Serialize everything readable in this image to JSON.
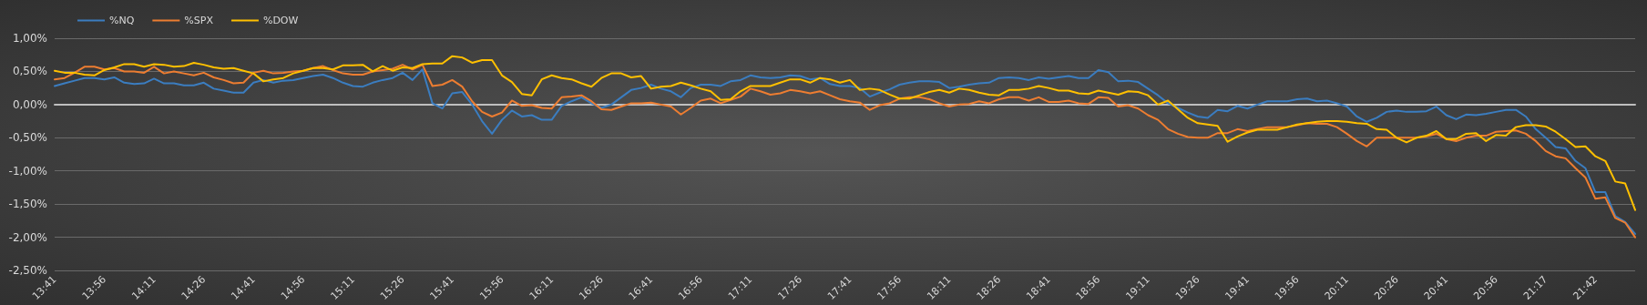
{
  "chart_data": {
    "type": "line",
    "categories": [
      "13:41",
      null,
      null,
      null,
      null,
      "13:56",
      null,
      null,
      null,
      null,
      "14:11",
      null,
      null,
      null,
      null,
      "14:26",
      null,
      null,
      null,
      null,
      "14:41",
      null,
      null,
      null,
      null,
      "14:56",
      null,
      null,
      null,
      null,
      "15:11",
      null,
      null,
      null,
      null,
      "15:26",
      null,
      null,
      null,
      null,
      "15:41",
      null,
      null,
      null,
      null,
      "15:56",
      null,
      null,
      null,
      null,
      "16:11",
      null,
      null,
      null,
      null,
      "16:26",
      null,
      null,
      null,
      null,
      "16:41",
      null,
      null,
      null,
      null,
      "16:56",
      null,
      null,
      null,
      null,
      "17:11",
      null,
      null,
      null,
      null,
      "17:26",
      null,
      null,
      null,
      null,
      "17:41",
      null,
      null,
      null,
      null,
      "17:56",
      null,
      null,
      null,
      null,
      "18:11",
      null,
      null,
      null,
      null,
      "18:26",
      null,
      null,
      null,
      null,
      "18:41",
      null,
      null,
      null,
      null,
      "18:56",
      null,
      null,
      null,
      null,
      "19:11",
      null,
      null,
      null,
      null,
      "19:26",
      null,
      null,
      null,
      null,
      "19:41",
      null,
      null,
      null,
      null,
      "19:56",
      null,
      null,
      null,
      null,
      "20:11",
      null,
      null,
      null,
      null,
      "20:26",
      null,
      null,
      null,
      null,
      "20:41",
      null,
      null,
      null,
      null,
      "20:56",
      null,
      null,
      null,
      null,
      "21:17",
      null,
      null,
      null,
      null,
      "21:42",
      null,
      null,
      null,
      null
    ],
    "series": [
      {
        "name": "%NQ",
        "color": "#3b7dc0",
        "values": [
          0.28,
          0.32,
          0.36,
          0.4,
          0.4,
          0.38,
          0.41,
          0.33,
          0.31,
          0.32,
          0.39,
          0.32,
          0.32,
          0.29,
          0.29,
          0.33,
          0.24,
          0.21,
          0.18,
          0.18,
          0.33,
          0.37,
          0.33,
          0.36,
          0.37,
          0.4,
          0.43,
          0.45,
          0.4,
          0.33,
          0.28,
          0.27,
          0.33,
          0.37,
          0.4,
          0.48,
          0.37,
          0.53,
          0.02,
          -0.06,
          0.17,
          0.19,
          0.0,
          -0.25,
          -0.44,
          -0.23,
          -0.09,
          -0.18,
          -0.16,
          -0.23,
          -0.23,
          -0.02,
          0.05,
          0.11,
          0.02,
          -0.05,
          0.0,
          0.11,
          0.22,
          0.25,
          0.3,
          0.24,
          0.2,
          0.11,
          0.25,
          0.3,
          0.3,
          0.28,
          0.35,
          0.37,
          0.44,
          0.41,
          0.4,
          0.41,
          0.44,
          0.43,
          0.38,
          0.4,
          0.31,
          0.28,
          0.28,
          0.25,
          0.12,
          0.18,
          0.23,
          0.3,
          0.33,
          0.35,
          0.35,
          0.34,
          0.25,
          0.27,
          0.3,
          0.32,
          0.33,
          0.4,
          0.41,
          0.4,
          0.37,
          0.41,
          0.39,
          0.41,
          0.43,
          0.4,
          0.4,
          0.52,
          0.49,
          0.35,
          0.36,
          0.34,
          0.24,
          0.14,
          0.02,
          -0.05,
          -0.12,
          -0.18,
          -0.2,
          -0.08,
          -0.1,
          -0.02,
          -0.06,
          0.0,
          0.05,
          0.05,
          0.05,
          0.08,
          0.09,
          0.05,
          0.06,
          0.02,
          -0.03,
          -0.18,
          -0.26,
          -0.2,
          -0.11,
          -0.09,
          -0.11,
          -0.11,
          -0.1,
          -0.03,
          -0.16,
          -0.22,
          -0.15,
          -0.16,
          -0.14,
          -0.11,
          -0.08,
          -0.08,
          -0.18,
          -0.37,
          -0.5,
          -0.64,
          -0.66,
          -0.85,
          -0.96,
          -1.32,
          -1.32,
          -1.68,
          -1.77,
          -1.95
        ]
      },
      {
        "name": "%SPX",
        "color": "#ed7d31",
        "values": [
          0.38,
          0.4,
          0.48,
          0.57,
          0.57,
          0.53,
          0.55,
          0.5,
          0.5,
          0.48,
          0.57,
          0.47,
          0.5,
          0.47,
          0.44,
          0.48,
          0.41,
          0.37,
          0.32,
          0.33,
          0.48,
          0.51,
          0.47,
          0.48,
          0.5,
          0.51,
          0.55,
          0.58,
          0.52,
          0.47,
          0.45,
          0.45,
          0.5,
          0.52,
          0.54,
          0.6,
          0.53,
          0.6,
          0.28,
          0.3,
          0.37,
          0.27,
          0.05,
          -0.11,
          -0.18,
          -0.12,
          0.06,
          -0.02,
          -0.01,
          -0.05,
          -0.06,
          0.11,
          0.12,
          0.14,
          0.05,
          -0.07,
          -0.08,
          -0.03,
          0.02,
          0.02,
          0.03,
          0.0,
          -0.03,
          -0.15,
          -0.05,
          0.06,
          0.09,
          0.02,
          0.07,
          0.12,
          0.24,
          0.2,
          0.15,
          0.17,
          0.22,
          0.2,
          0.17,
          0.2,
          0.14,
          0.08,
          0.05,
          0.03,
          -0.08,
          -0.01,
          0.02,
          0.09,
          0.11,
          0.11,
          0.08,
          0.02,
          -0.03,
          0.0,
          0.01,
          0.05,
          0.02,
          0.08,
          0.11,
          0.11,
          0.06,
          0.11,
          0.04,
          0.04,
          0.06,
          0.02,
          0.01,
          0.11,
          0.1,
          -0.03,
          -0.01,
          -0.06,
          -0.16,
          -0.23,
          -0.37,
          -0.44,
          -0.49,
          -0.5,
          -0.5,
          -0.43,
          -0.43,
          -0.37,
          -0.4,
          -0.37,
          -0.34,
          -0.34,
          -0.34,
          -0.31,
          -0.28,
          -0.29,
          -0.29,
          -0.34,
          -0.44,
          -0.55,
          -0.63,
          -0.5,
          -0.5,
          -0.5,
          -0.5,
          -0.5,
          -0.48,
          -0.44,
          -0.52,
          -0.55,
          -0.5,
          -0.47,
          -0.47,
          -0.41,
          -0.4,
          -0.39,
          -0.44,
          -0.55,
          -0.7,
          -0.78,
          -0.81,
          -0.96,
          -1.1,
          -1.42,
          -1.4,
          -1.71,
          -1.78,
          -2.0
        ]
      },
      {
        "name": "%DOW",
        "color": "#ffc000",
        "values": [
          0.51,
          0.48,
          0.48,
          0.45,
          0.44,
          0.52,
          0.56,
          0.61,
          0.61,
          0.57,
          0.61,
          0.6,
          0.57,
          0.58,
          0.63,
          0.6,
          0.56,
          0.54,
          0.55,
          0.51,
          0.47,
          0.35,
          0.38,
          0.4,
          0.47,
          0.51,
          0.55,
          0.55,
          0.53,
          0.59,
          0.59,
          0.6,
          0.5,
          0.58,
          0.51,
          0.56,
          0.55,
          0.61,
          0.62,
          0.62,
          0.73,
          0.71,
          0.63,
          0.67,
          0.67,
          0.44,
          0.34,
          0.16,
          0.14,
          0.38,
          0.44,
          0.4,
          0.38,
          0.32,
          0.27,
          0.4,
          0.47,
          0.47,
          0.41,
          0.43,
          0.24,
          0.27,
          0.28,
          0.33,
          0.29,
          0.24,
          0.2,
          0.07,
          0.08,
          0.2,
          0.28,
          0.28,
          0.28,
          0.33,
          0.38,
          0.38,
          0.33,
          0.4,
          0.38,
          0.33,
          0.37,
          0.22,
          0.24,
          0.22,
          0.15,
          0.09,
          0.09,
          0.14,
          0.19,
          0.22,
          0.18,
          0.24,
          0.22,
          0.18,
          0.15,
          0.14,
          0.22,
          0.22,
          0.24,
          0.28,
          0.25,
          0.21,
          0.21,
          0.17,
          0.16,
          0.21,
          0.18,
          0.15,
          0.2,
          0.19,
          0.14,
          0.0,
          0.06,
          -0.07,
          -0.2,
          -0.28,
          -0.3,
          -0.32,
          -0.56,
          -0.48,
          -0.42,
          -0.38,
          -0.38,
          -0.38,
          -0.34,
          -0.3,
          -0.28,
          -0.26,
          -0.25,
          -0.25,
          -0.26,
          -0.28,
          -0.29,
          -0.37,
          -0.38,
          -0.5,
          -0.57,
          -0.5,
          -0.47,
          -0.4,
          -0.52,
          -0.52,
          -0.44,
          -0.43,
          -0.55,
          -0.46,
          -0.47,
          -0.34,
          -0.31,
          -0.31,
          -0.33,
          -0.41,
          -0.52,
          -0.64,
          -0.63,
          -0.78,
          -0.85,
          -1.16,
          -1.19,
          -1.59
        ]
      }
    ],
    "ylim": [
      -2.5,
      1.0
    ],
    "yticks": [
      {
        "value": -2.5,
        "label": "-2,50%"
      },
      {
        "value": -2.0,
        "label": "-2,00%"
      },
      {
        "value": -1.5,
        "label": "-1,50%"
      },
      {
        "value": -1.0,
        "label": "-1,00%"
      },
      {
        "value": -0.5,
        "label": "-0,50%"
      },
      {
        "value": 0,
        "label": "0,00%"
      },
      {
        "value": 0.5,
        "label": "0,50%"
      },
      {
        "value": 1.0,
        "label": "1,00%"
      }
    ],
    "grid": "y",
    "legend": "top left"
  }
}
